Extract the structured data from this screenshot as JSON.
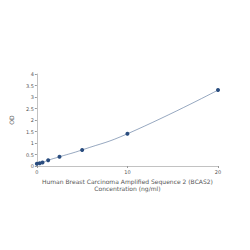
{
  "chart_data": {
    "type": "line",
    "x_label": "Human Breast Carcinoma Amplified Sequence 2 (BCAS2)\nConcentration (ng/ml)",
    "y_label": "OD",
    "x": [
      0,
      0.312,
      0.625,
      1.25,
      2.5,
      5,
      10,
      20
    ],
    "values": [
      0.1,
      0.12,
      0.15,
      0.25,
      0.4,
      0.7,
      1.4,
      3.3
    ],
    "color": "#2a4d7f",
    "marker": "circle",
    "xlim": [
      0,
      20
    ],
    "xticks": [
      0,
      10,
      20
    ],
    "ylim": [
      0,
      4
    ],
    "yticks": [
      0,
      0.5,
      1,
      1.5,
      2,
      2.5,
      3,
      3.5,
      4
    ],
    "grid": false
  }
}
